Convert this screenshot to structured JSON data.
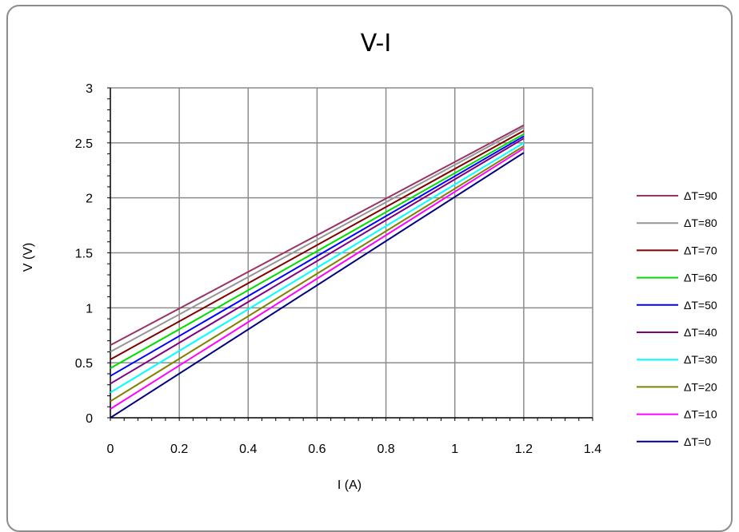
{
  "chart_data": {
    "type": "line",
    "title": "V-I",
    "xlabel": "I (A)",
    "ylabel": "V (V)",
    "xlim": [
      0,
      1.4
    ],
    "ylim": [
      0,
      3
    ],
    "x_ticks": [
      "0",
      "0.2",
      "0.4",
      "0.6",
      "0.8",
      "1",
      "1.2",
      "1.4"
    ],
    "y_ticks": [
      "0",
      "0.5",
      "1",
      "1.5",
      "2",
      "2.5",
      "3"
    ],
    "grid": true,
    "legend_position": "right",
    "series": [
      {
        "name": "ΔT=90",
        "color": "#993366",
        "x": [
          0,
          1.2
        ],
        "values": [
          0.66,
          2.66
        ]
      },
      {
        "name": "ΔT=80",
        "color": "#969696",
        "x": [
          0,
          1.2
        ],
        "values": [
          0.6,
          2.64
        ]
      },
      {
        "name": "ΔT=70",
        "color": "#800000",
        "x": [
          0,
          1.2
        ],
        "values": [
          0.53,
          2.61
        ]
      },
      {
        "name": "ΔT=60",
        "color": "#00dd00",
        "x": [
          0,
          1.2
        ],
        "values": [
          0.45,
          2.58
        ]
      },
      {
        "name": "ΔT=50",
        "color": "#0000ff",
        "x": [
          0,
          1.2
        ],
        "values": [
          0.38,
          2.56
        ]
      },
      {
        "name": "ΔT=40",
        "color": "#800080",
        "x": [
          0,
          1.2
        ],
        "values": [
          0.31,
          2.54
        ]
      },
      {
        "name": "ΔT=30",
        "color": "#00ffff",
        "x": [
          0,
          1.2
        ],
        "values": [
          0.23,
          2.5
        ]
      },
      {
        "name": "ΔT=20",
        "color": "#808000",
        "x": [
          0,
          1.2
        ],
        "values": [
          0.15,
          2.47
        ]
      },
      {
        "name": "ΔT=10",
        "color": "#ff00ff",
        "x": [
          0,
          1.2
        ],
        "values": [
          0.08,
          2.45
        ]
      },
      {
        "name": "ΔT=0",
        "color": "#000080",
        "x": [
          0,
          1.2
        ],
        "values": [
          0.0,
          2.41
        ]
      }
    ]
  }
}
